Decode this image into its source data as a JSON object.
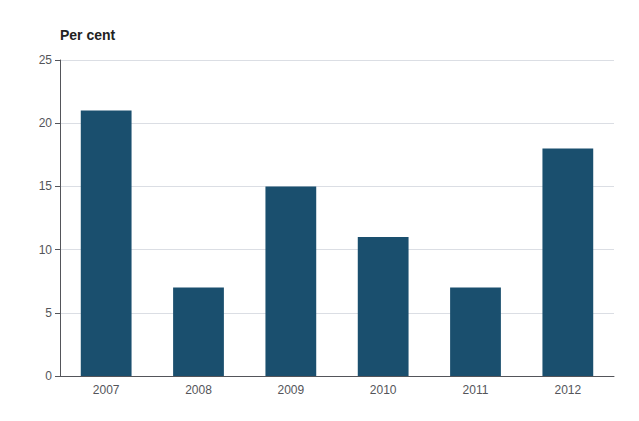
{
  "chart_data": {
    "type": "bar",
    "ylabel": "Per cent",
    "categories": [
      "2007",
      "2008",
      "2009",
      "2010",
      "2011",
      "2012"
    ],
    "values": [
      21,
      7,
      15,
      11,
      7,
      18
    ],
    "color": "#1a4f6e",
    "ylim": [
      0,
      25
    ],
    "yticks": [
      0,
      5,
      10,
      15,
      20,
      25
    ],
    "grid": true
  }
}
